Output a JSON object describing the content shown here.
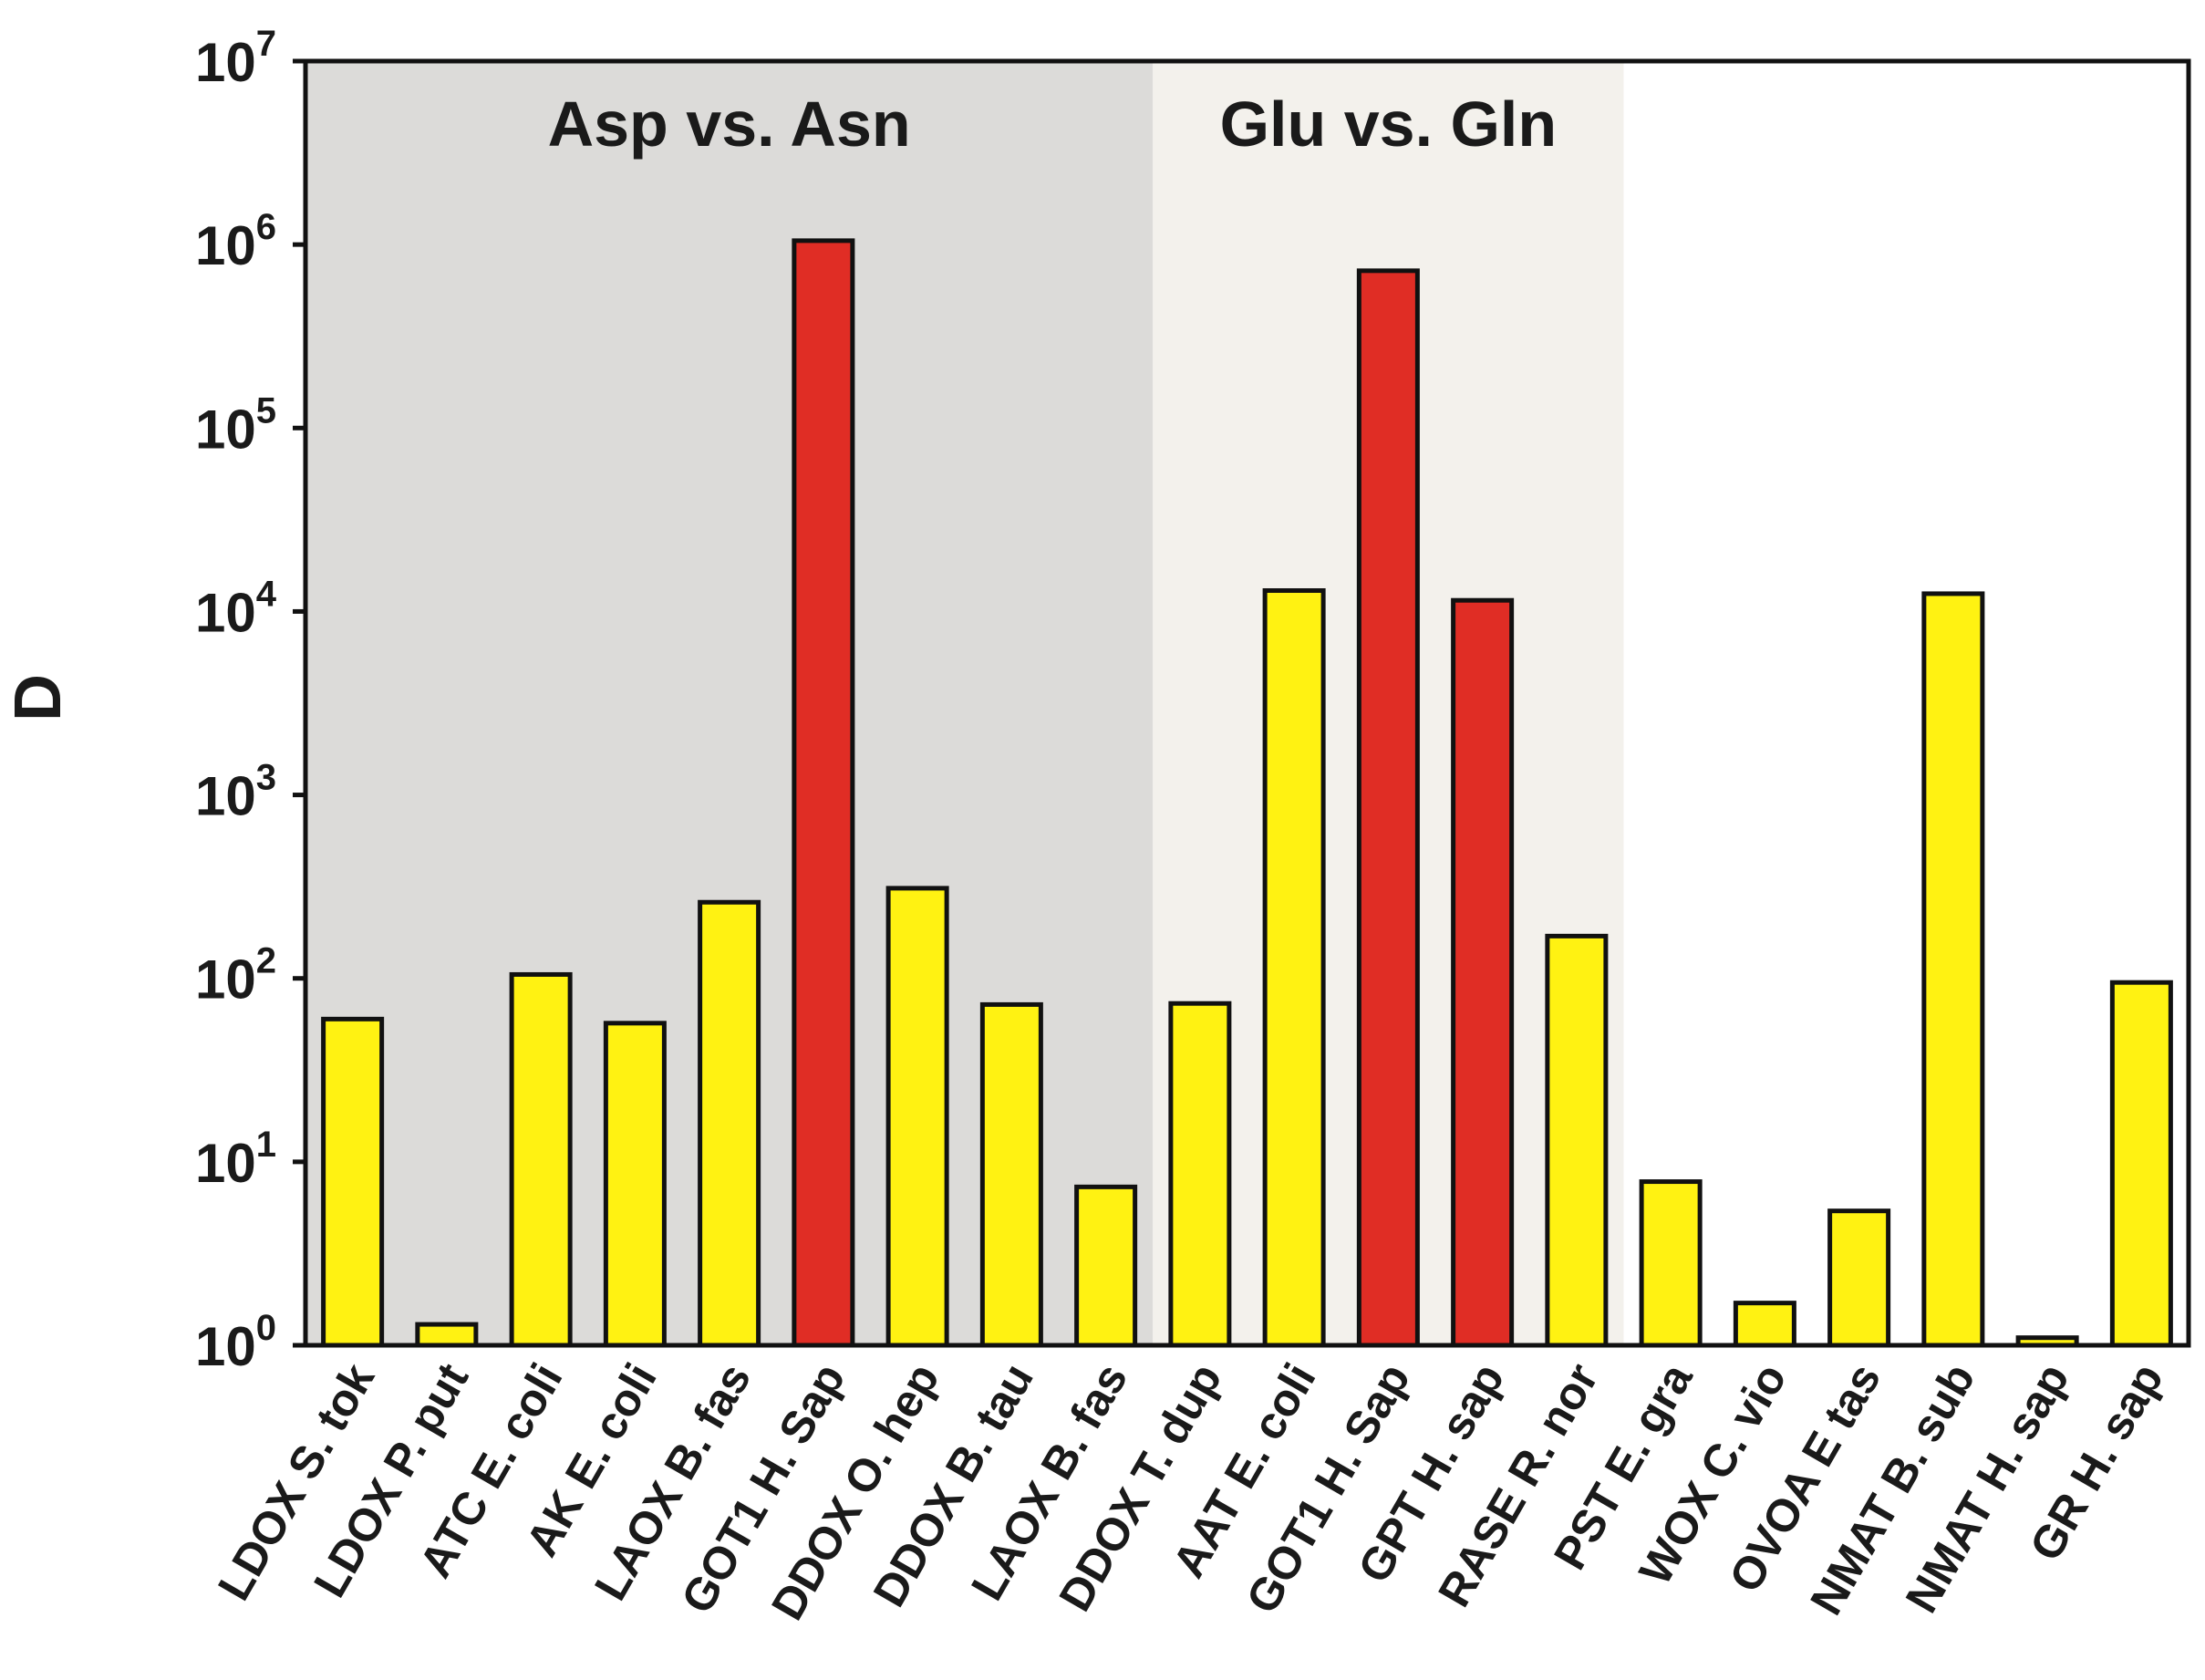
{
  "chart_data": {
    "type": "bar",
    "title": "",
    "xlabel": "",
    "ylabel": "D",
    "yscale": "log",
    "ylim": [
      1,
      10000000
    ],
    "yticks": [
      {
        "base": "10",
        "exp": "0"
      },
      {
        "base": "10",
        "exp": "1"
      },
      {
        "base": "10",
        "exp": "2"
      },
      {
        "base": "10",
        "exp": "3"
      },
      {
        "base": "10",
        "exp": "4"
      },
      {
        "base": "10",
        "exp": "5"
      },
      {
        "base": "10",
        "exp": "6"
      },
      {
        "base": "10",
        "exp": "7"
      }
    ],
    "regions": [
      {
        "label": "Asp vs. Asn",
        "start_index": 0,
        "end_index": 8,
        "color": "#dcdbd9"
      },
      {
        "label": "Glu vs. Gln",
        "start_index": 9,
        "end_index": 13,
        "color": "#f3f1ec"
      }
    ],
    "categories": [
      "LDOX S. tok",
      "LDOX P. put",
      "ATC E. coli",
      "AK E. coli",
      "LAOX B. fas",
      "GOT1 H. Sap",
      "DDOX O. hep",
      "DDOX B. tau",
      "LAOX B. fas",
      "DDOX T. dup",
      "AAT E. coli",
      "GOT1 H. Sap",
      "GPT H. sap",
      "RASE R. nor",
      "PST E. gra",
      "WOX C. vio",
      "OVOA E tas",
      "NMAT B. sub",
      "NMAT H. sap",
      "GR H. sap"
    ],
    "values": [
      60,
      1.3,
      105,
      57,
      260,
      1050000,
      310,
      72,
      7.3,
      73,
      13000,
      720000,
      11500,
      170,
      7.8,
      1.7,
      5.4,
      12500,
      1.1,
      95
    ],
    "bar_colors": [
      "#fff212",
      "#fff212",
      "#fff212",
      "#fff212",
      "#fff212",
      "#e02d25",
      "#fff212",
      "#fff212",
      "#fff212",
      "#fff212",
      "#fff212",
      "#e02d25",
      "#e02d25",
      "#fff212",
      "#fff212",
      "#fff212",
      "#fff212",
      "#fff212",
      "#fff212",
      "#fff212"
    ]
  }
}
